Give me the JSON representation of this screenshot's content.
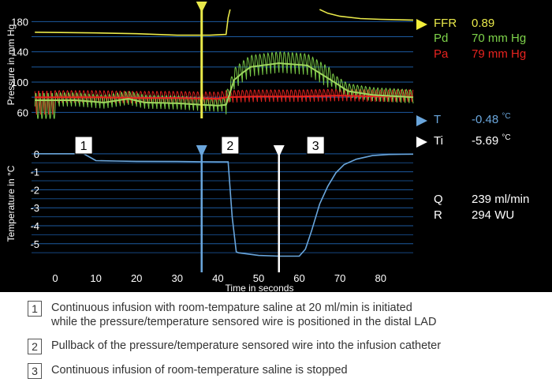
{
  "colors": {
    "background": "#000000",
    "ffr": "#e9e94a",
    "pd": "#7ed34a",
    "pa": "#e8231f",
    "temperature": "#6aa6dc",
    "ti": "#ffffff",
    "grid": "#1c5aa0"
  },
  "readouts": {
    "ffr": {
      "label": "FFR",
      "value": "0.89"
    },
    "pd": {
      "label": "Pd",
      "value": "70 mm Hg"
    },
    "pa": {
      "label": "Pa",
      "value": "79 mm Hg"
    },
    "t": {
      "label": "T",
      "value": "-0.48 ",
      "unit": "°C"
    },
    "ti": {
      "label": "Ti",
      "value": "-5.69 ",
      "unit": "°C"
    },
    "q": {
      "label": "Q",
      "value": "239 ml/min"
    },
    "r": {
      "label": "R",
      "value": "294 WU"
    }
  },
  "legend": [
    {
      "num": "1",
      "line1": "Continuous infusion with room-tempature saline at 20 ml/min is initiated",
      "line2": "while the pressure/temperature sensored wire is positioned in the distal LAD"
    },
    {
      "num": "2",
      "line1": "Pullback of the pressure/temperature sensored wire into the infusion catheter"
    },
    {
      "num": "3",
      "line1": "Continuous infusion of room-temperature saline is stopped"
    }
  ],
  "chart_data": [
    {
      "type": "line",
      "title": "",
      "ylabel": "Pressure in mm Hg",
      "yticks": [
        60,
        100,
        140,
        180
      ],
      "ylim": [
        52,
        196
      ],
      "xlim": [
        -5,
        88
      ],
      "markers": [
        {
          "name": "FFR cursor",
          "x": 36,
          "color": "#e9e94a"
        }
      ],
      "series": [
        {
          "name": "FFR",
          "points": [
            [
              -5,
              166
            ],
            [
              10,
              165
            ],
            [
              20,
              164
            ],
            [
              30,
              162
            ],
            [
              38,
              162
            ],
            [
              42,
              163
            ],
            [
              42.5,
              185
            ],
            [
              43,
              196
            ]
          ],
          "extra_points": [
            [
              65,
              196
            ],
            [
              67,
              191
            ],
            [
              70,
              187
            ],
            [
              75,
              184
            ],
            [
              80,
              183
            ],
            [
              88,
              182
            ]
          ]
        },
        {
          "name": "Pd",
          "mean_points": [
            [
              -5,
              76
            ],
            [
              5,
              76
            ],
            [
              12,
              73
            ],
            [
              18,
              78
            ],
            [
              22,
              73
            ],
            [
              30,
              72
            ],
            [
              36,
              70
            ],
            [
              40,
              69
            ],
            [
              42,
              70
            ],
            [
              44,
              103
            ],
            [
              46,
              112
            ],
            [
              48,
              120
            ],
            [
              55,
              125
            ],
            [
              62,
              122
            ],
            [
              68,
              102
            ],
            [
              72,
              88
            ],
            [
              78,
              83
            ],
            [
              88,
              80
            ]
          ],
          "pulse_amplitude": 18
        },
        {
          "name": "Pa",
          "mean_points": [
            [
              -5,
              80
            ],
            [
              10,
              80
            ],
            [
              20,
              79
            ],
            [
              30,
              79
            ],
            [
              40,
              78
            ],
            [
              42,
              80
            ],
            [
              50,
              81
            ],
            [
              60,
              81
            ],
            [
              70,
              82
            ],
            [
              80,
              81
            ],
            [
              88,
              81
            ]
          ],
          "pulse_amplitude": 16
        }
      ]
    },
    {
      "type": "line",
      "title": "",
      "xlabel": "Time in seconds",
      "ylabel": "Temperature in °C",
      "xticks": [
        0,
        10,
        20,
        30,
        40,
        50,
        60,
        70,
        80
      ],
      "yticks": [
        0,
        -1,
        -2,
        -3,
        -4,
        -5
      ],
      "ylim": [
        -5.8,
        0.3
      ],
      "xlim": [
        -5,
        88
      ],
      "annotations": [
        {
          "label": "1",
          "x": 7
        },
        {
          "label": "2",
          "x": 43
        },
        {
          "label": "3",
          "x": 64
        }
      ],
      "markers": [
        {
          "name": "T cursor",
          "x": 36,
          "color": "#6aa6dc"
        },
        {
          "name": "Ti cursor",
          "x": 55,
          "color": "#ffffff"
        }
      ],
      "series": [
        {
          "name": "Temperature",
          "points": [
            [
              -5,
              0
            ],
            [
              7,
              0
            ],
            [
              9,
              -0.25
            ],
            [
              10,
              -0.38
            ],
            [
              15,
              -0.4
            ],
            [
              20,
              -0.42
            ],
            [
              30,
              -0.43
            ],
            [
              40,
              -0.45
            ],
            [
              42.5,
              -0.45
            ],
            [
              43.5,
              -3.5
            ],
            [
              44.5,
              -5.45
            ],
            [
              45,
              -5.5
            ],
            [
              50,
              -5.65
            ],
            [
              55,
              -5.69
            ],
            [
              60,
              -5.69
            ],
            [
              61.5,
              -5.3
            ],
            [
              63,
              -4.3
            ],
            [
              65,
              -2.8
            ],
            [
              67,
              -1.8
            ],
            [
              69,
              -1.05
            ],
            [
              71,
              -0.6
            ],
            [
              74,
              -0.3
            ],
            [
              78,
              -0.1
            ],
            [
              82,
              -0.04
            ],
            [
              88,
              -0.02
            ]
          ]
        }
      ]
    }
  ]
}
